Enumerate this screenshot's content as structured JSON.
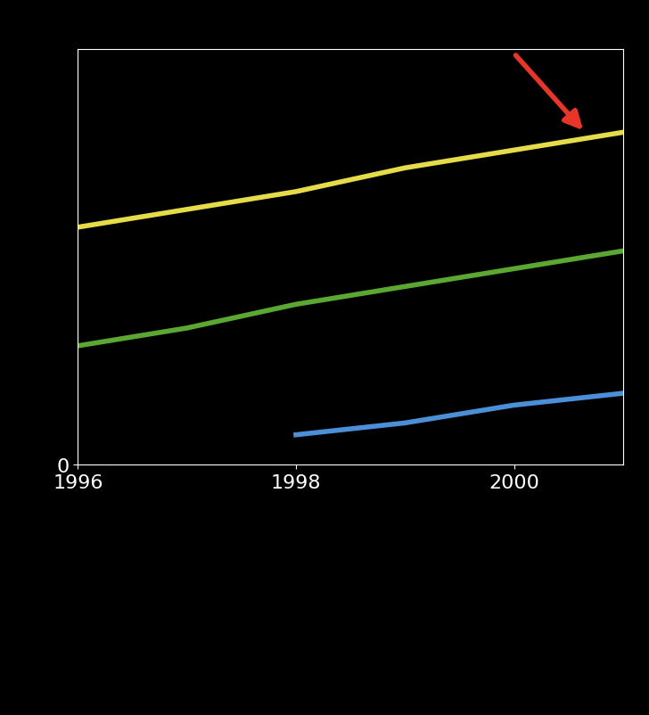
{
  "chart_data": {
    "type": "line",
    "x": [
      1996,
      1997,
      1998,
      1999,
      2000,
      2001
    ],
    "series": [
      {
        "color": "#e6dc4a",
        "values": [
          4.0,
          4.3,
          4.6,
          5.0,
          5.3,
          5.6
        ]
      },
      {
        "color": "#5aa832",
        "values": [
          2.0,
          2.3,
          2.7,
          3.0,
          3.3,
          3.6
        ]
      },
      {
        "color": "#4a8fd8",
        "values": [
          null,
          null,
          0.5,
          0.7,
          1.0,
          1.2
        ]
      }
    ],
    "xlim": [
      1996,
      2001
    ],
    "xticks": [
      1996,
      1998,
      2000
    ],
    "ylim": [
      0,
      7
    ],
    "yticks": [
      0
    ],
    "grid": false
  }
}
